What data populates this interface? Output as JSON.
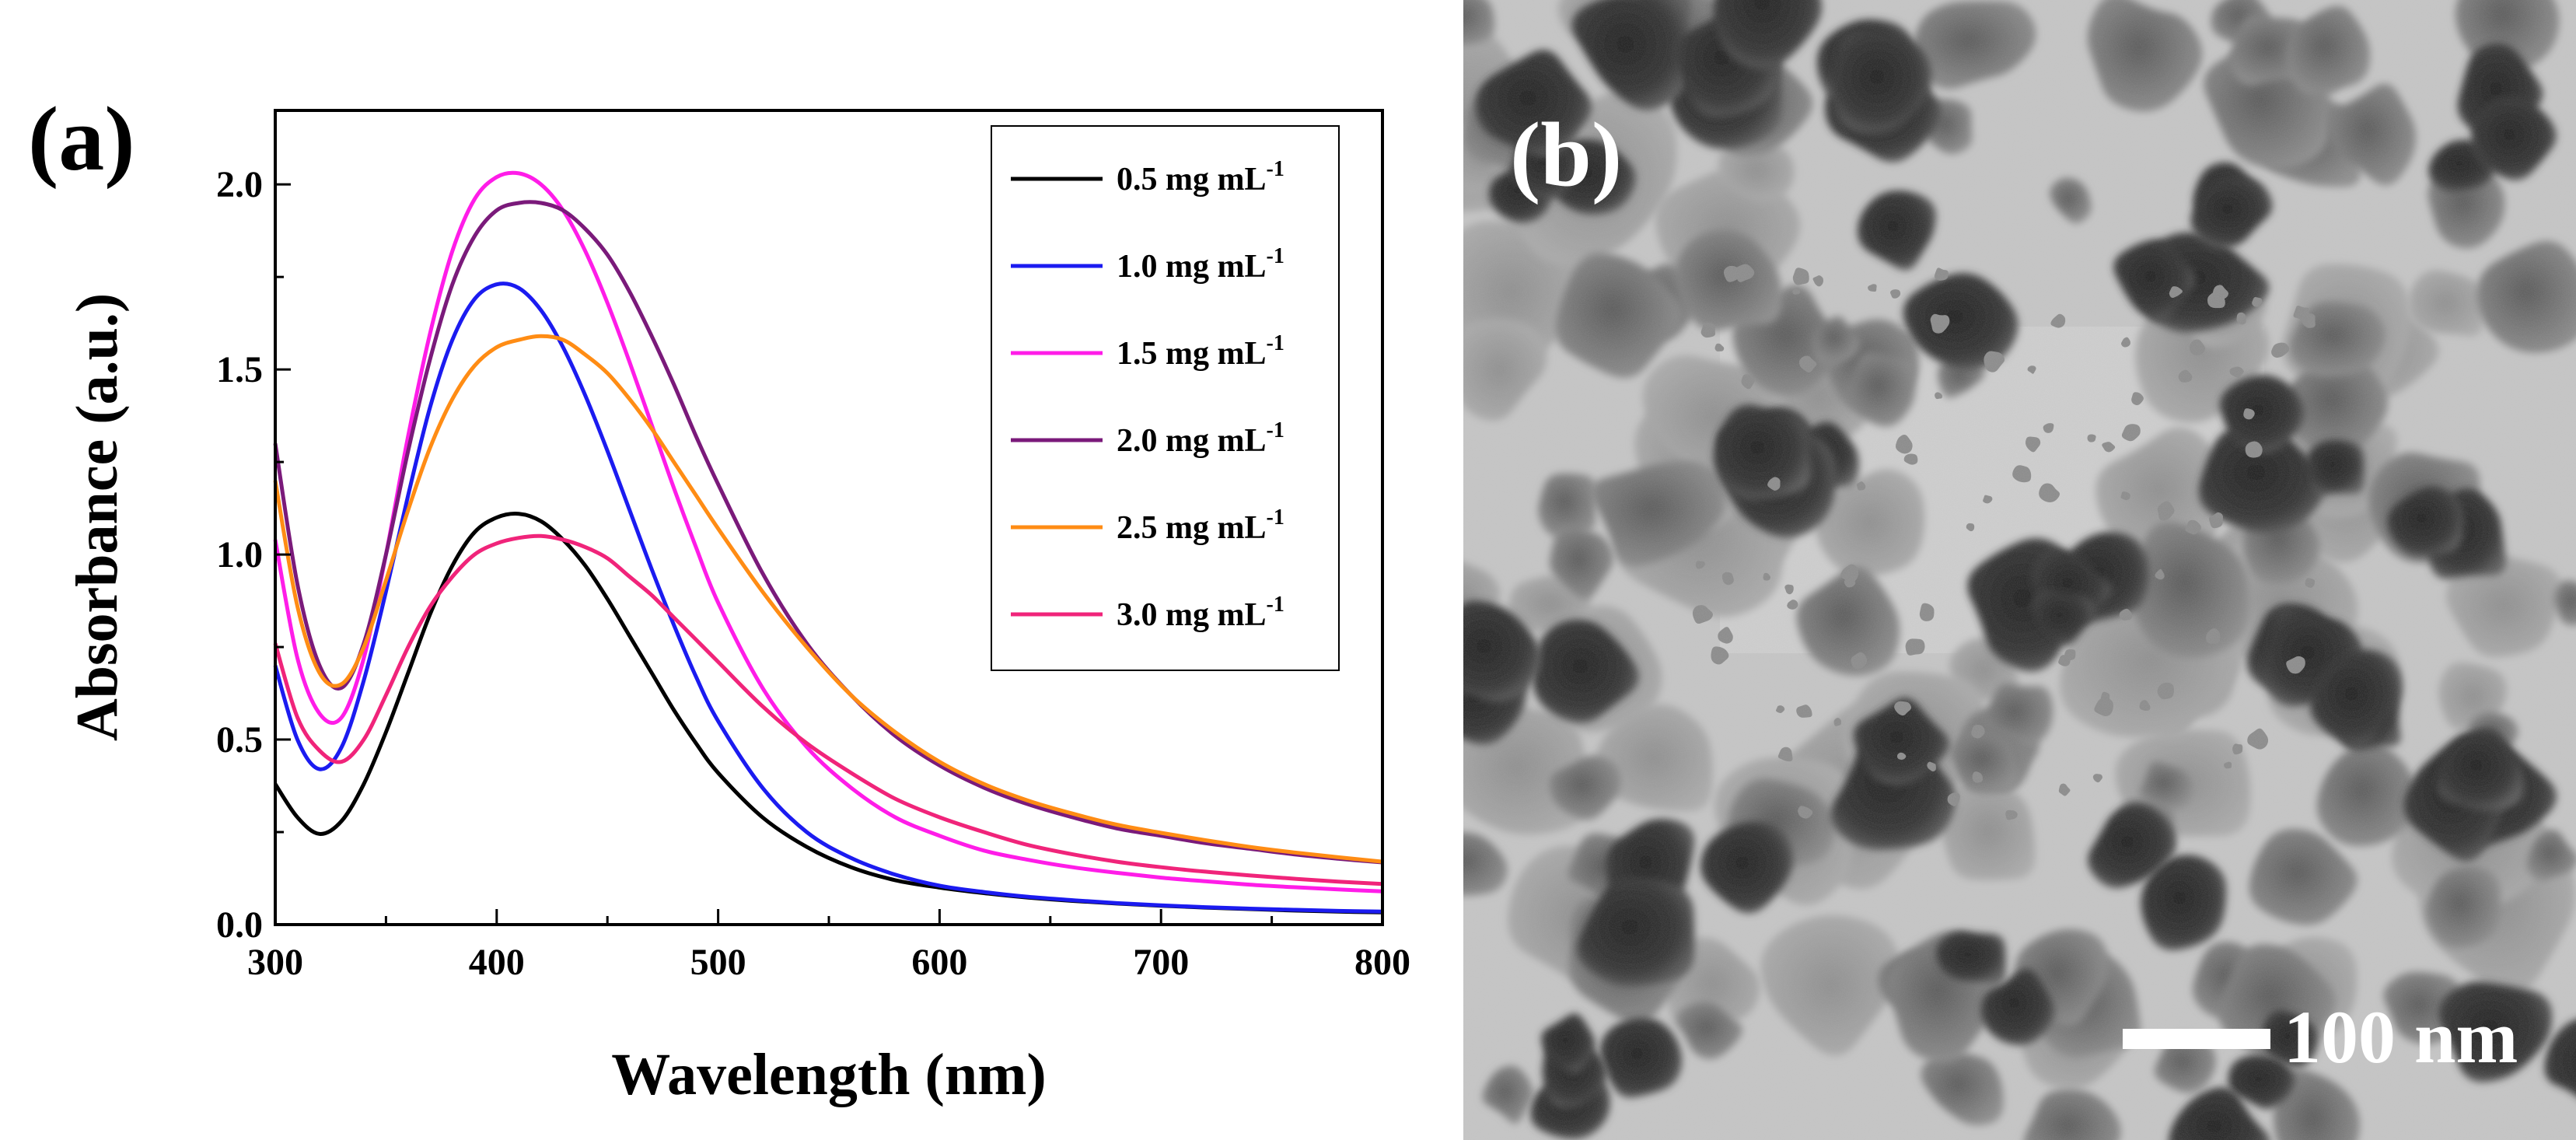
{
  "panel_a": {
    "label": "(a)"
  },
  "panel_b": {
    "label": "(b)",
    "scale_bar": "100 nm",
    "image_description": "TEM micrograph"
  },
  "chart_data": {
    "type": "line",
    "title": "",
    "xlabel": "Wavelength (nm)",
    "ylabel": "Absorbance (a.u.)",
    "xlim": [
      300,
      800
    ],
    "ylim": [
      0.0,
      2.2
    ],
    "xticks": [
      300,
      400,
      500,
      600,
      700,
      800
    ],
    "yticks": [
      0.0,
      0.5,
      1.0,
      1.5,
      2.0
    ],
    "ytick_labels": [
      "0.0",
      "0.5",
      "1.0",
      "1.5",
      "2.0"
    ],
    "grid": false,
    "legend_position": "top-right",
    "x": [
      300,
      310,
      320,
      330,
      340,
      350,
      360,
      370,
      380,
      390,
      400,
      410,
      420,
      430,
      440,
      450,
      460,
      470,
      480,
      490,
      500,
      520,
      540,
      560,
      580,
      600,
      620,
      640,
      660,
      680,
      700,
      720,
      740,
      760,
      780,
      800
    ],
    "series": [
      {
        "name": "0.5 mg mL",
        "unit_sup": "-1",
        "color": "#000000",
        "values": [
          0.38,
          0.29,
          0.245,
          0.28,
          0.38,
          0.52,
          0.68,
          0.84,
          0.97,
          1.06,
          1.1,
          1.11,
          1.09,
          1.04,
          0.97,
          0.88,
          0.78,
          0.68,
          0.58,
          0.49,
          0.41,
          0.29,
          0.21,
          0.155,
          0.12,
          0.1,
          0.085,
          0.073,
          0.064,
          0.057,
          0.051,
          0.046,
          0.042,
          0.038,
          0.035,
          0.033
        ]
      },
      {
        "name": "1.0 mg mL",
        "unit_sup": "-1",
        "color": "#1b1bf0",
        "values": [
          0.7,
          0.5,
          0.42,
          0.48,
          0.66,
          0.9,
          1.16,
          1.4,
          1.58,
          1.69,
          1.73,
          1.72,
          1.66,
          1.56,
          1.43,
          1.28,
          1.12,
          0.96,
          0.81,
          0.67,
          0.55,
          0.37,
          0.25,
          0.18,
          0.135,
          0.105,
          0.088,
          0.075,
          0.066,
          0.058,
          0.052,
          0.047,
          0.043,
          0.04,
          0.037,
          0.035
        ]
      },
      {
        "name": "1.5 mg mL",
        "unit_sup": "-1",
        "color": "#ff1ce8",
        "values": [
          1.04,
          0.72,
          0.57,
          0.56,
          0.72,
          1.0,
          1.32,
          1.6,
          1.82,
          1.96,
          2.02,
          2.03,
          2.0,
          1.93,
          1.82,
          1.68,
          1.52,
          1.35,
          1.18,
          1.02,
          0.87,
          0.64,
          0.48,
          0.37,
          0.29,
          0.24,
          0.2,
          0.175,
          0.155,
          0.14,
          0.127,
          0.117,
          0.108,
          0.101,
          0.095,
          0.09
        ]
      },
      {
        "name": "2.0 mg mL",
        "unit_sup": "-1",
        "color": "#7a1a7a",
        "values": [
          1.3,
          0.92,
          0.7,
          0.64,
          0.76,
          1.0,
          1.28,
          1.53,
          1.73,
          1.86,
          1.93,
          1.95,
          1.95,
          1.93,
          1.88,
          1.81,
          1.71,
          1.59,
          1.46,
          1.32,
          1.19,
          0.95,
          0.76,
          0.62,
          0.51,
          0.43,
          0.37,
          0.325,
          0.29,
          0.26,
          0.24,
          0.22,
          0.205,
          0.19,
          0.178,
          0.168
        ]
      },
      {
        "name": "2.5 mg mL",
        "unit_sup": "-1",
        "color": "#ff8c14",
        "values": [
          1.2,
          0.86,
          0.68,
          0.65,
          0.75,
          0.93,
          1.12,
          1.29,
          1.42,
          1.51,
          1.56,
          1.58,
          1.59,
          1.58,
          1.54,
          1.49,
          1.42,
          1.34,
          1.25,
          1.16,
          1.07,
          0.9,
          0.75,
          0.62,
          0.52,
          0.44,
          0.38,
          0.335,
          0.3,
          0.27,
          0.248,
          0.228,
          0.21,
          0.195,
          0.182,
          0.17
        ]
      },
      {
        "name": "3.0 mg mL",
        "unit_sup": "-1",
        "color": "#f0247a",
        "values": [
          0.76,
          0.56,
          0.47,
          0.44,
          0.5,
          0.62,
          0.75,
          0.86,
          0.94,
          1.0,
          1.03,
          1.045,
          1.05,
          1.04,
          1.02,
          0.99,
          0.94,
          0.89,
          0.83,
          0.77,
          0.71,
          0.59,
          0.49,
          0.41,
          0.34,
          0.29,
          0.25,
          0.215,
          0.19,
          0.17,
          0.155,
          0.143,
          0.133,
          0.124,
          0.116,
          0.11
        ]
      }
    ]
  }
}
